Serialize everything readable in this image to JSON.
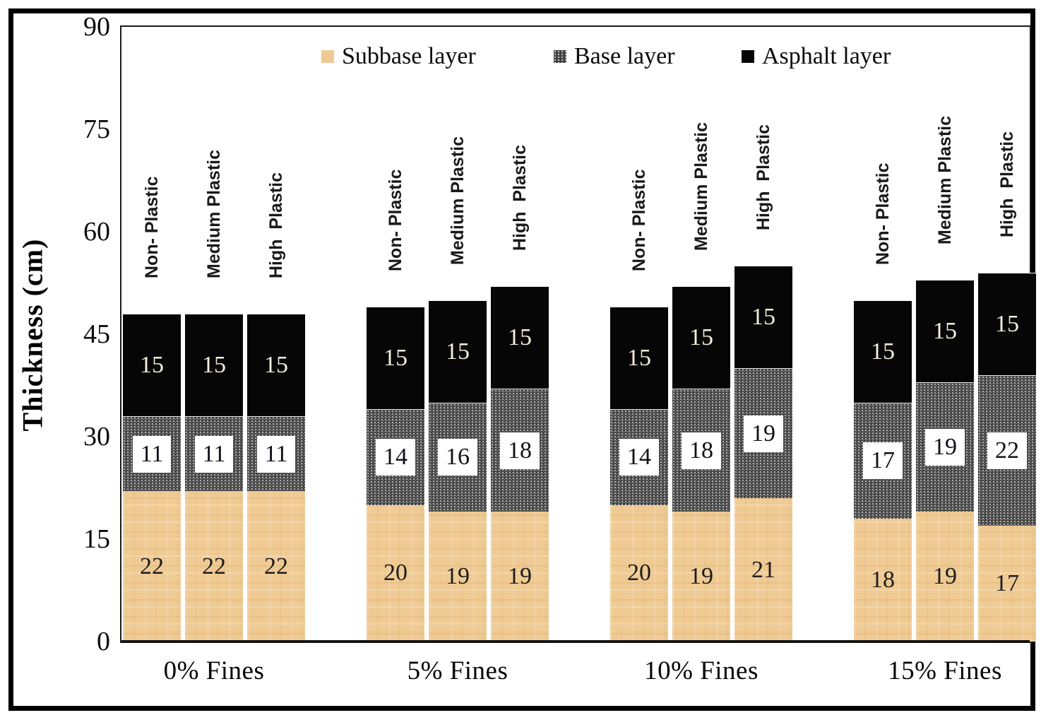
{
  "chart_data": {
    "type": "bar",
    "stacked": true,
    "title": "",
    "ylabel": "Thickness (cm)",
    "xlabel": "",
    "ylim": [
      0,
      90
    ],
    "yticks": [
      0,
      15,
      30,
      45,
      60,
      75,
      90
    ],
    "grid": false,
    "legend_position": "top-inside",
    "groups": [
      "0% Fines",
      "5% Fines",
      "10% Fines",
      "15% Fines"
    ],
    "bar_labels": [
      "Non- Plastic",
      "Medium Plastic",
      "High  Plastic"
    ],
    "series": [
      {
        "name": "Subbase layer",
        "swatch": "subbase",
        "color": "#efca93",
        "values": [
          [
            22,
            22,
            22
          ],
          [
            20,
            19,
            19
          ],
          [
            20,
            19,
            21
          ],
          [
            18,
            19,
            17
          ]
        ]
      },
      {
        "name": "Base layer",
        "swatch": "base",
        "color": "#3b3b3b",
        "values": [
          [
            11,
            11,
            11
          ],
          [
            14,
            16,
            18
          ],
          [
            14,
            18,
            19
          ],
          [
            17,
            19,
            22
          ]
        ]
      },
      {
        "name": "Asphalt layer",
        "swatch": "asphalt",
        "color": "#060606",
        "values": [
          [
            15,
            15,
            15
          ],
          [
            15,
            15,
            15
          ],
          [
            15,
            15,
            15
          ],
          [
            15,
            15,
            15
          ]
        ]
      }
    ]
  }
}
